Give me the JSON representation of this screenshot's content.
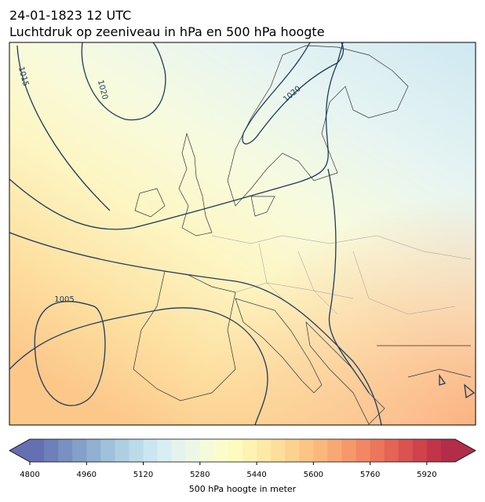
{
  "header": {
    "title": "24-01-1823 12 UTC",
    "subtitle": "Luchtdruk op zeeniveau in hPa en 500 hPa hoogte"
  },
  "map": {
    "contour_labels": [
      1015,
      1020,
      1020,
      1005
    ]
  },
  "colorbar": {
    "label": "500 hPa hoogte in meter",
    "lim": [
      4800,
      6000
    ],
    "ticks": [
      4800,
      4960,
      5120,
      5280,
      5440,
      5600,
      5760,
      5920
    ],
    "colors": [
      "#6570b3",
      "#6d80ba",
      "#7890c2",
      "#84a0ca",
      "#91b0d2",
      "#9fc1da",
      "#aecfe2",
      "#bcdbe9",
      "#cbe6f0",
      "#d9eef3",
      "#e5f3ef",
      "#eef7e6",
      "#f5fadb",
      "#fbfccc",
      "#fefac0",
      "#fef3b3",
      "#fee9a6",
      "#fdde9a",
      "#fdd28f",
      "#fcc585",
      "#fbb77c",
      "#f9a873",
      "#f6986b",
      "#f28763",
      "#ec765c",
      "#e46455",
      "#da5350",
      "#cf434c",
      "#c23549",
      "#b32d4b"
    ]
  }
}
